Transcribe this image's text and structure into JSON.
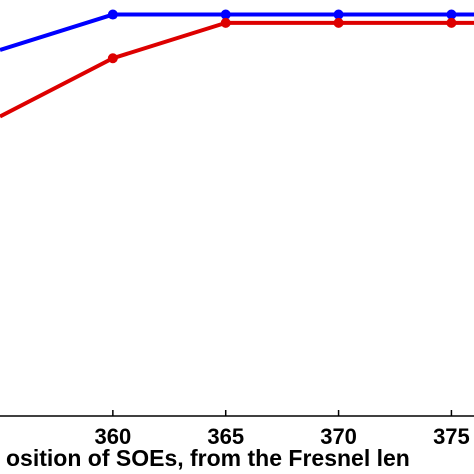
{
  "chart_data": {
    "type": "line",
    "xlabel": "osition of SOEs, from the Fresnel len",
    "ylabel": "",
    "title": "",
    "x_ticks": [
      "360",
      "365",
      "370",
      "375"
    ],
    "xlim": [
      355,
      376
    ],
    "ylim": [
      0,
      1
    ],
    "grid": false,
    "series": [
      {
        "color": "#0000ff",
        "points": [
          [
            355,
            0.88
          ],
          [
            360,
            0.965
          ],
          [
            365,
            0.965
          ],
          [
            370,
            0.965
          ],
          [
            375,
            0.965
          ],
          [
            376,
            0.965
          ]
        ]
      },
      {
        "color": "#dd0000",
        "points": [
          [
            355,
            0.72
          ],
          [
            360,
            0.86
          ],
          [
            365,
            0.945
          ],
          [
            370,
            0.945
          ],
          [
            375,
            0.945
          ],
          [
            376,
            0.945
          ]
        ]
      }
    ]
  }
}
